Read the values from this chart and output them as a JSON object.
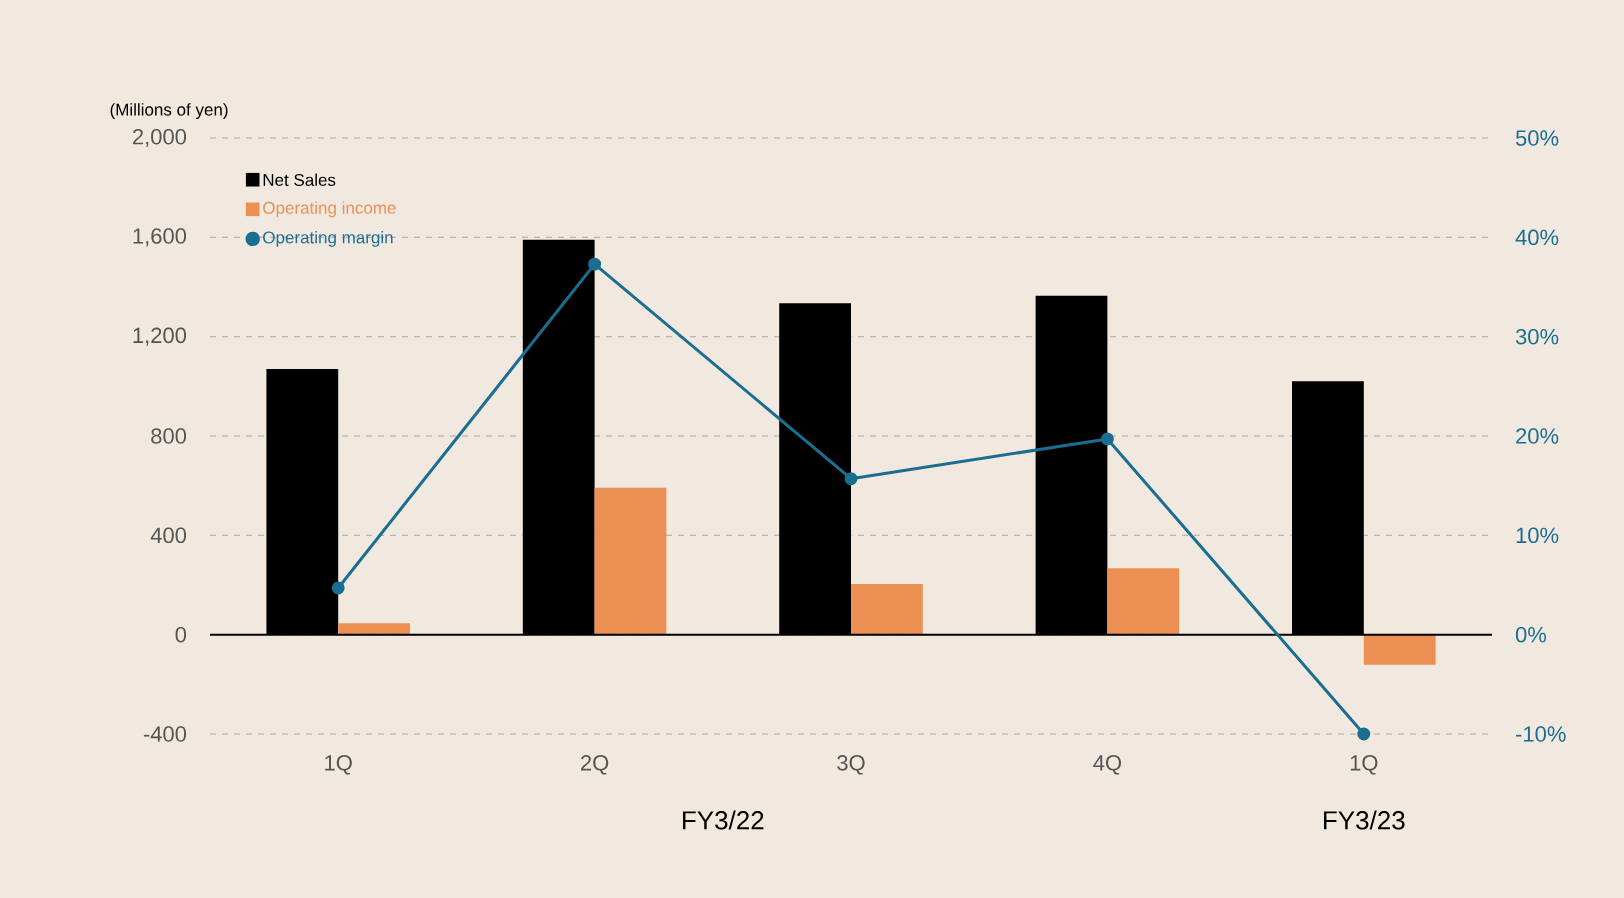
{
  "chart_data": {
    "type": "bar",
    "ylabel": "(Millions of yen)",
    "categories": [
      "1Q",
      "2Q",
      "3Q",
      "4Q",
      "1Q"
    ],
    "series": [
      {
        "name": "Net Sales",
        "color": "#000000",
        "values": [
          1070,
          1590,
          1335,
          1365,
          1020
        ]
      },
      {
        "name": "Operating income",
        "color": "#ec8f52",
        "values": [
          46,
          592,
          204,
          267,
          -121
        ]
      },
      {
        "name": "Operating margin",
        "color": "#1a6e91",
        "type": "line",
        "axis": "y2",
        "marker": "circle",
        "values": [
          4.7,
          37.3,
          15.7,
          19.7,
          -10
        ]
      }
    ],
    "ylim": [
      -400,
      2000
    ],
    "yticks": [
      {
        "value": -400,
        "label": "-400"
      },
      0,
      {
        "value": 400,
        "label": "400"
      },
      {
        "value": 800,
        "label": "800"
      },
      {
        "value": 1200,
        "label": "1,200"
      },
      {
        "value": 1600,
        "label": "1,600"
      },
      {
        "value": 2000,
        "label": "2,000"
      }
    ],
    "y2lim": [
      -10,
      50
    ],
    "y2ticks": [
      {
        "value": -10,
        "label": "-10%"
      },
      {
        "value": 0,
        "label": "0%"
      },
      {
        "value": 10,
        "label": "10%"
      },
      {
        "value": 20,
        "label": "20%"
      },
      {
        "value": 30,
        "label": "30%"
      },
      {
        "value": 40,
        "label": "40%"
      },
      {
        "value": 50,
        "label": "50%"
      }
    ],
    "grid": "y",
    "legend": "top left",
    "annotations": [
      "FY3/22",
      "FY3/23"
    ]
  }
}
